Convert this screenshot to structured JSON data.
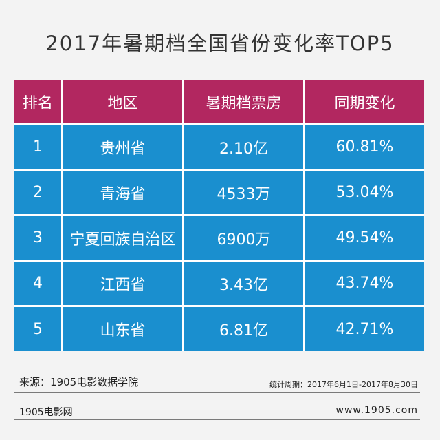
{
  "title": "2017年暑期档全国省份变化率TOP5",
  "table": {
    "headers": [
      "排名",
      "地区",
      "暑期档票房",
      "同期变化"
    ],
    "rows": [
      [
        "1",
        "贵州省",
        "2.10亿",
        "60.81%"
      ],
      [
        "2",
        "青海省",
        "4533万",
        "53.04%"
      ],
      [
        "3",
        "宁夏回族自治区",
        "6900万",
        "49.54%"
      ],
      [
        "4",
        "江西省",
        "3.43亿",
        "43.74%"
      ],
      [
        "5",
        "山东省",
        "6.81亿",
        "42.71%"
      ]
    ]
  },
  "footer": {
    "source": "来源：1905电影数据学院",
    "period": "统计周期：2017年6月1日-2017年8月30日",
    "brand": "1905电影网",
    "url": "www.1905.com"
  },
  "colors": {
    "header_bg": "#b22760",
    "row_bg": "#1a8fcf",
    "page_bg": "#f3f3f3"
  }
}
